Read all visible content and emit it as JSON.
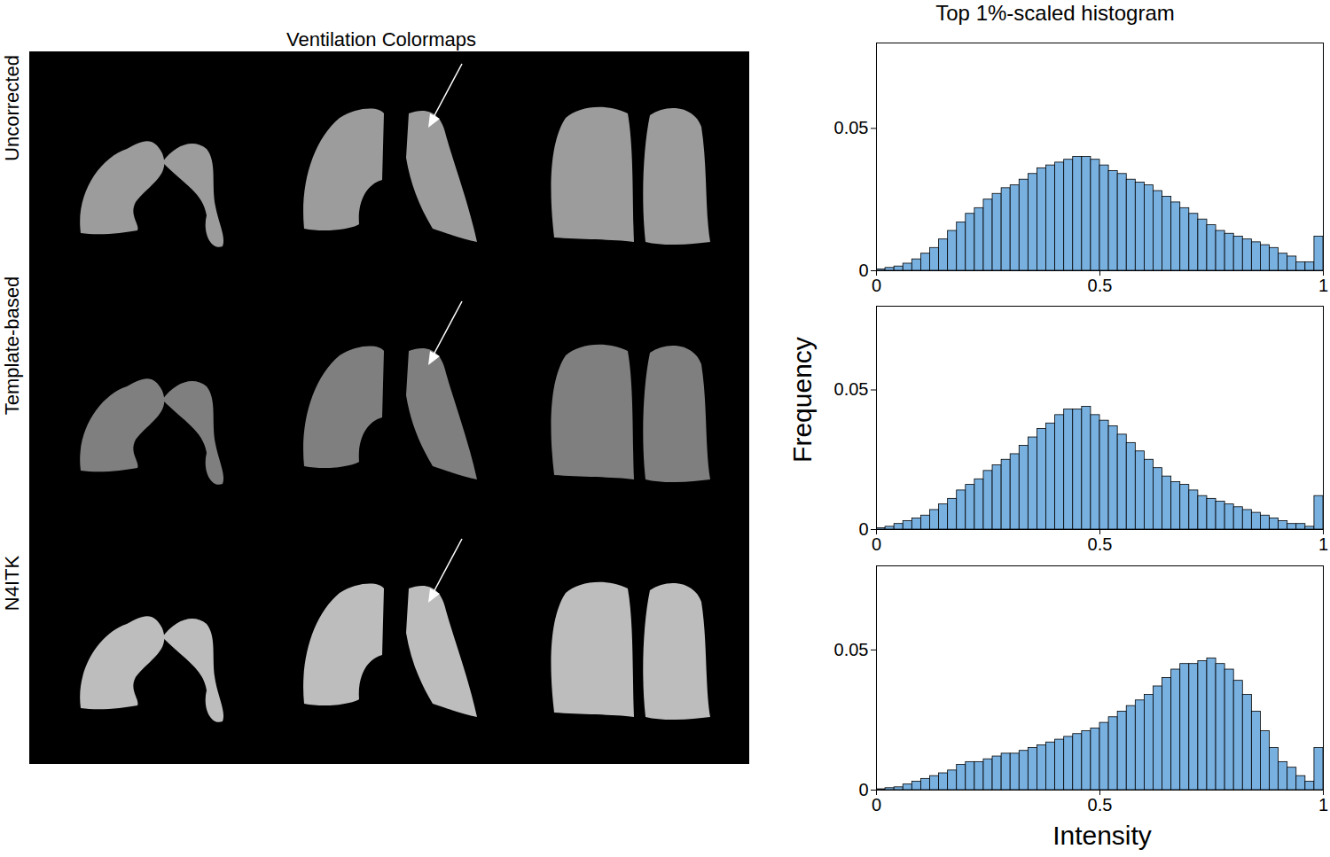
{
  "image_panel": {
    "title": "Ventilation Colormaps",
    "rows": [
      "Uncorrected",
      "Template-based",
      "N4ITK"
    ]
  },
  "chart_data": [
    {
      "type": "histogram",
      "title": "Top 1%-scaled histogram",
      "color": "#78b0e0",
      "bins": [
        0,
        0.02,
        0.04,
        0.06,
        0.08,
        0.1,
        0.12,
        0.14,
        0.16,
        0.18,
        0.2,
        0.22,
        0.24,
        0.26,
        0.28,
        0.3,
        0.32,
        0.34,
        0.36,
        0.38,
        0.4,
        0.42,
        0.44,
        0.46,
        0.48,
        0.5,
        0.52,
        0.54,
        0.56,
        0.58,
        0.6,
        0.62,
        0.64,
        0.66,
        0.68,
        0.7,
        0.72,
        0.74,
        0.76,
        0.78,
        0.8,
        0.82,
        0.84,
        0.86,
        0.88,
        0.9,
        0.92,
        0.94,
        0.96,
        0.98,
        1
      ],
      "values": [
        0.0005,
        0.001,
        0.0015,
        0.0025,
        0.004,
        0.006,
        0.008,
        0.011,
        0.014,
        0.017,
        0.02,
        0.022,
        0.025,
        0.027,
        0.029,
        0.03,
        0.032,
        0.034,
        0.036,
        0.037,
        0.038,
        0.039,
        0.04,
        0.04,
        0.039,
        0.037,
        0.035,
        0.034,
        0.032,
        0.031,
        0.03,
        0.028,
        0.026,
        0.024,
        0.022,
        0.02,
        0.018,
        0.016,
        0.014,
        0.013,
        0.012,
        0.011,
        0.01,
        0.009,
        0.008,
        0.006,
        0.005,
        0.003,
        0.003,
        0.012
      ],
      "xlim": [
        0,
        1
      ],
      "xticks": [
        0,
        0.5,
        1
      ],
      "ylim": [
        0,
        0.08
      ],
      "yticks": [
        0,
        0.05
      ]
    },
    {
      "type": "histogram",
      "ylabel": "Frequency",
      "color": "#78b0e0",
      "bins": [
        0,
        0.02,
        0.04,
        0.06,
        0.08,
        0.1,
        0.12,
        0.14,
        0.16,
        0.18,
        0.2,
        0.22,
        0.24,
        0.26,
        0.28,
        0.3,
        0.32,
        0.34,
        0.36,
        0.38,
        0.4,
        0.42,
        0.44,
        0.46,
        0.48,
        0.5,
        0.52,
        0.54,
        0.56,
        0.58,
        0.6,
        0.62,
        0.64,
        0.66,
        0.68,
        0.7,
        0.72,
        0.74,
        0.76,
        0.78,
        0.8,
        0.82,
        0.84,
        0.86,
        0.88,
        0.9,
        0.92,
        0.94,
        0.96,
        0.98,
        1
      ],
      "values": [
        0.0005,
        0.001,
        0.002,
        0.003,
        0.004,
        0.005,
        0.007,
        0.009,
        0.011,
        0.014,
        0.016,
        0.018,
        0.021,
        0.023,
        0.025,
        0.027,
        0.03,
        0.033,
        0.036,
        0.038,
        0.041,
        0.043,
        0.043,
        0.044,
        0.041,
        0.039,
        0.037,
        0.034,
        0.031,
        0.028,
        0.025,
        0.022,
        0.019,
        0.017,
        0.016,
        0.014,
        0.012,
        0.011,
        0.01,
        0.009,
        0.008,
        0.007,
        0.006,
        0.005,
        0.004,
        0.003,
        0.002,
        0.002,
        0.001,
        0.012
      ],
      "xlim": [
        0,
        1
      ],
      "xticks": [
        0,
        0.5,
        1
      ],
      "ylim": [
        0,
        0.08
      ],
      "yticks": [
        0,
        0.05
      ]
    },
    {
      "type": "histogram",
      "xlabel": "Intensity",
      "color": "#78b0e0",
      "bins": [
        0,
        0.02,
        0.04,
        0.06,
        0.08,
        0.1,
        0.12,
        0.14,
        0.16,
        0.18,
        0.2,
        0.22,
        0.24,
        0.26,
        0.28,
        0.3,
        0.32,
        0.34,
        0.36,
        0.38,
        0.4,
        0.42,
        0.44,
        0.46,
        0.48,
        0.5,
        0.52,
        0.54,
        0.56,
        0.58,
        0.6,
        0.62,
        0.64,
        0.66,
        0.68,
        0.7,
        0.72,
        0.74,
        0.76,
        0.78,
        0.8,
        0.82,
        0.84,
        0.86,
        0.88,
        0.9,
        0.92,
        0.94,
        0.96,
        0.98,
        1
      ],
      "values": [
        0.0003,
        0.0007,
        0.001,
        0.002,
        0.003,
        0.004,
        0.005,
        0.006,
        0.007,
        0.009,
        0.01,
        0.01,
        0.011,
        0.012,
        0.013,
        0.013,
        0.014,
        0.015,
        0.016,
        0.017,
        0.018,
        0.019,
        0.02,
        0.021,
        0.022,
        0.024,
        0.026,
        0.028,
        0.03,
        0.032,
        0.034,
        0.037,
        0.04,
        0.043,
        0.045,
        0.045,
        0.046,
        0.047,
        0.045,
        0.043,
        0.039,
        0.034,
        0.028,
        0.021,
        0.015,
        0.01,
        0.008,
        0.005,
        0.003,
        0.015
      ],
      "xlim": [
        0,
        1
      ],
      "xticks": [
        0,
        0.5,
        1
      ],
      "ylim": [
        0,
        0.08
      ],
      "yticks": [
        0,
        0.05
      ]
    }
  ]
}
